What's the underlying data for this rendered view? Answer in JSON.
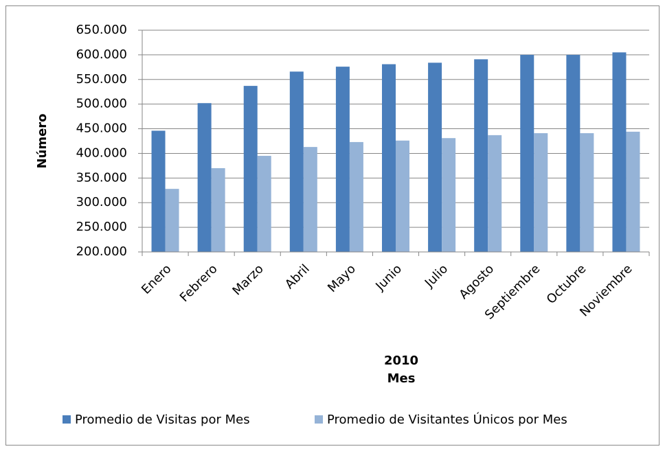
{
  "chart_data": {
    "type": "bar",
    "y_label": "Número",
    "x_label": [
      "2010",
      "Mes"
    ],
    "categories": [
      "Enero",
      "Febrero",
      "Marzo",
      "Abril",
      "Mayo",
      "Junio",
      "Julio",
      "Agosto",
      "Septiembre",
      "Octubre",
      "Noviembre"
    ],
    "series": [
      {
        "name": "Promedio de Visitas por Mes",
        "color": "#4a7ebb",
        "values": [
          446000,
          502000,
          537000,
          566000,
          576000,
          581000,
          584000,
          591000,
          600000,
          600000,
          605000
        ]
      },
      {
        "name": "Promedio de Visitantes Únicos por Mes",
        "color": "#95b3d7",
        "values": [
          328000,
          370000,
          395000,
          413000,
          423000,
          426000,
          431000,
          437000,
          441000,
          441000,
          444000
        ]
      }
    ],
    "ylim": [
      200000,
      650000
    ],
    "yticks": [
      {
        "value": 200000,
        "label": "200.000"
      },
      {
        "value": 250000,
        "label": "250.000"
      },
      {
        "value": 300000,
        "label": "300.000"
      },
      {
        "value": 350000,
        "label": "350.000"
      },
      {
        "value": 400000,
        "label": "400.000"
      },
      {
        "value": 450000,
        "label": "450.000"
      },
      {
        "value": 500000,
        "label": "500.000"
      },
      {
        "value": 550000,
        "label": "550.000"
      },
      {
        "value": 600000,
        "label": "600.000"
      },
      {
        "value": 650000,
        "label": "650.000"
      }
    ],
    "grid": true,
    "legend": "bottom"
  }
}
